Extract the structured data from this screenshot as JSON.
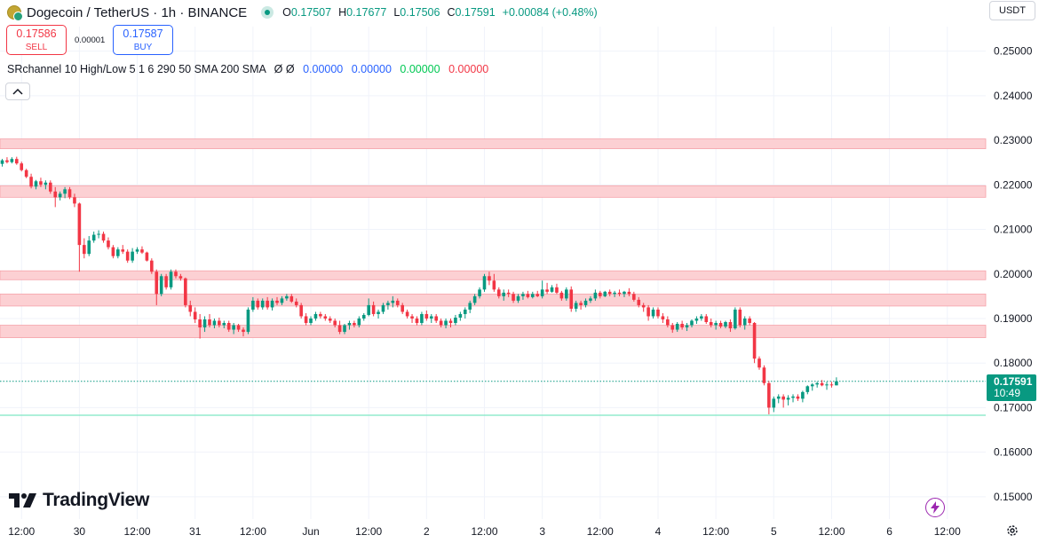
{
  "header": {
    "symbol": "Dogecoin / TetherUS · 1h · BINANCE",
    "ohlc": [
      {
        "key": "O",
        "value": "0.17507"
      },
      {
        "key": "H",
        "value": "0.17677"
      },
      {
        "key": "L",
        "value": "0.17506"
      },
      {
        "key": "C",
        "value": "0.17591"
      }
    ],
    "change": "+0.00084 (+0.48%)"
  },
  "trade": {
    "sell_price": "0.17586",
    "sell_label": "SELL",
    "spread": "0.00001",
    "buy_price": "0.17587",
    "buy_label": "BUY"
  },
  "indicator": {
    "name": "SRchannel 10 High/Low 5 1 6 290 50 SMA 200 SMA",
    "flags": "Ø  Ø",
    "values": [
      "0.00000",
      "0.00000",
      "0.00000",
      "0.00000"
    ]
  },
  "currency": "USDT",
  "brand": "TradingView",
  "last_price": {
    "price": "0.17591",
    "countdown": "10:49"
  },
  "colors": {
    "up": "#089981",
    "down": "#f23645",
    "zone_fill": "#fcd0d3",
    "zone_border": "#f5a3aa"
  },
  "icons": [
    "coin-icon",
    "chevron-up-icon",
    "bolt-icon",
    "gear-icon",
    "tradingview-logo-icon"
  ],
  "chart_data": {
    "type": "candlestick",
    "y_ticks": [
      "0.25000",
      "0.24000",
      "0.23000",
      "0.22000",
      "0.21000",
      "0.20000",
      "0.19000",
      "0.18000",
      "0.17000",
      "0.16000",
      "0.15000"
    ],
    "ylim": [
      0.145,
      0.2555
    ],
    "x_ticks": [
      "12:00",
      "30",
      "12:00",
      "31",
      "12:00",
      "Jun",
      "12:00",
      "2",
      "12:00",
      "3",
      "12:00",
      "4",
      "12:00",
      "5",
      "12:00",
      "6",
      "12:00"
    ],
    "grid": true,
    "last_close": 0.17591,
    "horizontal_line": 0.1683,
    "sr_zones": [
      [
        0.2281,
        0.2303
      ],
      [
        0.2172,
        0.2198
      ],
      [
        0.1987,
        0.2007
      ],
      [
        0.1928,
        0.1955
      ],
      [
        0.1857,
        0.1885
      ]
    ],
    "candles": [
      [
        0.2247,
        0.2258,
        0.2241,
        0.2255
      ],
      [
        0.2255,
        0.2262,
        0.2248,
        0.2251
      ],
      [
        0.2251,
        0.2262,
        0.2248,
        0.2258
      ],
      [
        0.2258,
        0.2263,
        0.2245,
        0.2248
      ],
      [
        0.2248,
        0.2252,
        0.223,
        0.2233
      ],
      [
        0.2233,
        0.2236,
        0.2215,
        0.2218
      ],
      [
        0.2218,
        0.2225,
        0.2192,
        0.2196
      ],
      [
        0.2196,
        0.2211,
        0.219,
        0.2208
      ],
      [
        0.2208,
        0.2216,
        0.2195,
        0.22
      ],
      [
        0.22,
        0.221,
        0.219,
        0.2205
      ],
      [
        0.2205,
        0.221,
        0.218,
        0.2185
      ],
      [
        0.2185,
        0.2195,
        0.215,
        0.2172
      ],
      [
        0.2172,
        0.2185,
        0.2165,
        0.218
      ],
      [
        0.218,
        0.2195,
        0.217,
        0.219
      ],
      [
        0.219,
        0.2195,
        0.2168,
        0.2172
      ],
      [
        0.2172,
        0.218,
        0.215,
        0.2158
      ],
      [
        0.2158,
        0.216,
        0.2005,
        0.2065
      ],
      [
        0.2065,
        0.208,
        0.2035,
        0.2045
      ],
      [
        0.2045,
        0.2085,
        0.204,
        0.2075
      ],
      [
        0.2075,
        0.2095,
        0.207,
        0.2088
      ],
      [
        0.2088,
        0.2098,
        0.208,
        0.209
      ],
      [
        0.209,
        0.2095,
        0.207,
        0.2075
      ],
      [
        0.2075,
        0.2082,
        0.2055,
        0.206
      ],
      [
        0.206,
        0.2065,
        0.2035,
        0.204
      ],
      [
        0.204,
        0.206,
        0.2035,
        0.2055
      ],
      [
        0.2055,
        0.2065,
        0.2045,
        0.205
      ],
      [
        0.205,
        0.2055,
        0.2025,
        0.203
      ],
      [
        0.203,
        0.2058,
        0.2025,
        0.205
      ],
      [
        0.205,
        0.206,
        0.2045,
        0.2055
      ],
      [
        0.2055,
        0.2062,
        0.2045,
        0.2048
      ],
      [
        0.2048,
        0.205,
        0.2028,
        0.203
      ],
      [
        0.203,
        0.2035,
        0.2,
        0.2005
      ],
      [
        0.2005,
        0.201,
        0.193,
        0.1955
      ],
      [
        0.1955,
        0.2,
        0.195,
        0.1995
      ],
      [
        0.1995,
        0.2,
        0.1965,
        0.197
      ],
      [
        0.197,
        0.201,
        0.1965,
        0.2005
      ],
      [
        0.2005,
        0.201,
        0.199,
        0.1995
      ],
      [
        0.1995,
        0.2,
        0.1985,
        0.199
      ],
      [
        0.199,
        0.1992,
        0.1925,
        0.193
      ],
      [
        0.193,
        0.194,
        0.1905,
        0.1915
      ],
      [
        0.1915,
        0.1925,
        0.189,
        0.1898
      ],
      [
        0.1898,
        0.191,
        0.1855,
        0.188
      ],
      [
        0.188,
        0.1905,
        0.187,
        0.1898
      ],
      [
        0.1898,
        0.191,
        0.188,
        0.1885
      ],
      [
        0.1885,
        0.19,
        0.1878,
        0.1895
      ],
      [
        0.1895,
        0.1902,
        0.188,
        0.1885
      ],
      [
        0.1885,
        0.1895,
        0.1878,
        0.189
      ],
      [
        0.189,
        0.1895,
        0.187,
        0.1875
      ],
      [
        0.1875,
        0.189,
        0.1865,
        0.1885
      ],
      [
        0.1885,
        0.1888,
        0.187,
        0.1875
      ],
      [
        0.1875,
        0.188,
        0.186,
        0.187
      ],
      [
        0.187,
        0.1925,
        0.1865,
        0.192
      ],
      [
        0.192,
        0.1948,
        0.1915,
        0.194
      ],
      [
        0.194,
        0.1945,
        0.192,
        0.1925
      ],
      [
        0.1925,
        0.1945,
        0.192,
        0.194
      ],
      [
        0.194,
        0.1948,
        0.192,
        0.1925
      ],
      [
        0.1925,
        0.1945,
        0.1918,
        0.194
      ],
      [
        0.194,
        0.1948,
        0.193,
        0.1935
      ],
      [
        0.1935,
        0.195,
        0.193,
        0.1945
      ],
      [
        0.1945,
        0.1955,
        0.194,
        0.195
      ],
      [
        0.195,
        0.1955,
        0.1935,
        0.1938
      ],
      [
        0.1938,
        0.1945,
        0.1925,
        0.193
      ],
      [
        0.193,
        0.1935,
        0.19,
        0.1905
      ],
      [
        0.1905,
        0.1912,
        0.1885,
        0.189
      ],
      [
        0.189,
        0.1905,
        0.1885,
        0.19
      ],
      [
        0.19,
        0.1915,
        0.1895,
        0.191
      ],
      [
        0.191,
        0.1915,
        0.19,
        0.1905
      ],
      [
        0.1905,
        0.191,
        0.1895,
        0.19
      ],
      [
        0.19,
        0.1905,
        0.189,
        0.1895
      ],
      [
        0.1895,
        0.19,
        0.188,
        0.1885
      ],
      [
        0.1885,
        0.1895,
        0.1865,
        0.187
      ],
      [
        0.187,
        0.1888,
        0.1865,
        0.1885
      ],
      [
        0.1885,
        0.1895,
        0.1875,
        0.189
      ],
      [
        0.189,
        0.1895,
        0.188,
        0.1885
      ],
      [
        0.1885,
        0.1905,
        0.188,
        0.19
      ],
      [
        0.19,
        0.1912,
        0.1895,
        0.1908
      ],
      [
        0.1908,
        0.1945,
        0.1905,
        0.193
      ],
      [
        0.193,
        0.1938,
        0.1905,
        0.191
      ],
      [
        0.191,
        0.192,
        0.19,
        0.1915
      ],
      [
        0.1915,
        0.1935,
        0.191,
        0.193
      ],
      [
        0.193,
        0.194,
        0.192,
        0.1935
      ],
      [
        0.1935,
        0.195,
        0.1925,
        0.194
      ],
      [
        0.194,
        0.1945,
        0.1925,
        0.193
      ],
      [
        0.193,
        0.1935,
        0.191,
        0.1915
      ],
      [
        0.1915,
        0.192,
        0.19,
        0.1905
      ],
      [
        0.1905,
        0.191,
        0.189,
        0.19
      ],
      [
        0.19,
        0.1905,
        0.1885,
        0.189
      ],
      [
        0.189,
        0.1915,
        0.1885,
        0.191
      ],
      [
        0.191,
        0.1918,
        0.1895,
        0.19
      ],
      [
        0.19,
        0.191,
        0.189,
        0.1905
      ],
      [
        0.1905,
        0.191,
        0.189,
        0.1895
      ],
      [
        0.1895,
        0.19,
        0.188,
        0.1885
      ],
      [
        0.1885,
        0.19,
        0.1878,
        0.1895
      ],
      [
        0.1895,
        0.19,
        0.188,
        0.189
      ],
      [
        0.189,
        0.1908,
        0.1885,
        0.1902
      ],
      [
        0.1902,
        0.1915,
        0.1895,
        0.191
      ],
      [
        0.191,
        0.1925,
        0.19,
        0.192
      ],
      [
        0.192,
        0.194,
        0.1912,
        0.1935
      ],
      [
        0.1935,
        0.1955,
        0.193,
        0.195
      ],
      [
        0.195,
        0.197,
        0.1945,
        0.1965
      ],
      [
        0.1965,
        0.2,
        0.196,
        0.1995
      ],
      [
        0.1995,
        0.2005,
        0.1975,
        0.1985
      ],
      [
        0.1985,
        0.2,
        0.196,
        0.1965
      ],
      [
        0.1965,
        0.197,
        0.1945,
        0.195
      ],
      [
        0.195,
        0.1965,
        0.194,
        0.1958
      ],
      [
        0.1958,
        0.1965,
        0.1948,
        0.1955
      ],
      [
        0.1955,
        0.196,
        0.1935,
        0.194
      ],
      [
        0.194,
        0.1955,
        0.1935,
        0.195
      ],
      [
        0.195,
        0.196,
        0.1942,
        0.1955
      ],
      [
        0.1955,
        0.1962,
        0.1945,
        0.1948
      ],
      [
        0.1948,
        0.196,
        0.1945,
        0.1955
      ],
      [
        0.1955,
        0.1962,
        0.1948,
        0.195
      ],
      [
        0.195,
        0.1985,
        0.1945,
        0.1965
      ],
      [
        0.1965,
        0.198,
        0.1955,
        0.196
      ],
      [
        0.196,
        0.1975,
        0.1958,
        0.197
      ],
      [
        0.197,
        0.1978,
        0.1955,
        0.1958
      ],
      [
        0.1958,
        0.1962,
        0.194,
        0.1945
      ],
      [
        0.1945,
        0.197,
        0.194,
        0.1965
      ],
      [
        0.1965,
        0.1972,
        0.1915,
        0.1922
      ],
      [
        0.1922,
        0.194,
        0.1915,
        0.1935
      ],
      [
        0.1935,
        0.194,
        0.192,
        0.193
      ],
      [
        0.193,
        0.1945,
        0.1925,
        0.194
      ],
      [
        0.194,
        0.195,
        0.1935,
        0.1945
      ],
      [
        0.1945,
        0.1965,
        0.194,
        0.1958
      ],
      [
        0.1958,
        0.1962,
        0.1945,
        0.195
      ],
      [
        0.195,
        0.1962,
        0.1948,
        0.196
      ],
      [
        0.196,
        0.1965,
        0.195,
        0.1955
      ],
      [
        0.1955,
        0.1962,
        0.1948,
        0.1958
      ],
      [
        0.1958,
        0.1965,
        0.195,
        0.1955
      ],
      [
        0.1955,
        0.1962,
        0.1948,
        0.196
      ],
      [
        0.196,
        0.1968,
        0.195,
        0.1955
      ],
      [
        0.1955,
        0.196,
        0.1938,
        0.1942
      ],
      [
        0.1942,
        0.1948,
        0.1925,
        0.193
      ],
      [
        0.193,
        0.1935,
        0.1915,
        0.1925
      ],
      [
        0.1925,
        0.193,
        0.1895,
        0.1905
      ],
      [
        0.1905,
        0.1925,
        0.19,
        0.192
      ],
      [
        0.192,
        0.1925,
        0.19,
        0.1905
      ],
      [
        0.1905,
        0.1912,
        0.189,
        0.1898
      ],
      [
        0.1898,
        0.1905,
        0.188,
        0.1885
      ],
      [
        0.1885,
        0.189,
        0.1868,
        0.1875
      ],
      [
        0.1875,
        0.1892,
        0.187,
        0.1888
      ],
      [
        0.1888,
        0.1895,
        0.1875,
        0.188
      ],
      [
        0.188,
        0.189,
        0.1872,
        0.1885
      ],
      [
        0.1885,
        0.1898,
        0.188,
        0.1895
      ],
      [
        0.1895,
        0.1905,
        0.1888,
        0.19
      ],
      [
        0.19,
        0.191,
        0.1895,
        0.1905
      ],
      [
        0.1905,
        0.191,
        0.1888,
        0.1892
      ],
      [
        0.1892,
        0.19,
        0.188,
        0.1885
      ],
      [
        0.1885,
        0.1895,
        0.1875,
        0.189
      ],
      [
        0.189,
        0.1895,
        0.1878,
        0.1882
      ],
      [
        0.1882,
        0.1895,
        0.1878,
        0.1892
      ],
      [
        0.1892,
        0.1898,
        0.187,
        0.1878
      ],
      [
        0.1878,
        0.1925,
        0.1875,
        0.192
      ],
      [
        0.192,
        0.1925,
        0.188,
        0.1885
      ],
      [
        0.1885,
        0.1905,
        0.1875,
        0.19
      ],
      [
        0.19,
        0.1905,
        0.1885,
        0.189
      ],
      [
        0.189,
        0.1892,
        0.18,
        0.181
      ],
      [
        0.181,
        0.1815,
        0.1785,
        0.179
      ],
      [
        0.179,
        0.1795,
        0.175,
        0.1755
      ],
      [
        0.1755,
        0.176,
        0.1685,
        0.17
      ],
      [
        0.17,
        0.1725,
        0.169,
        0.172
      ],
      [
        0.172,
        0.173,
        0.171,
        0.1725
      ],
      [
        0.1725,
        0.173,
        0.17,
        0.1718
      ],
      [
        0.1718,
        0.1728,
        0.1705,
        0.1722
      ],
      [
        0.1722,
        0.173,
        0.1712,
        0.1725
      ],
      [
        0.1725,
        0.173,
        0.1715,
        0.172
      ],
      [
        0.172,
        0.1738,
        0.1712,
        0.1735
      ],
      [
        0.1735,
        0.175,
        0.173,
        0.1748
      ],
      [
        0.1748,
        0.1755,
        0.1738,
        0.1752
      ],
      [
        0.1752,
        0.1758,
        0.1745,
        0.1755
      ],
      [
        0.1755,
        0.1762,
        0.1748,
        0.175
      ],
      [
        0.175,
        0.1758,
        0.174,
        0.1752
      ],
      [
        0.1752,
        0.1758,
        0.1745,
        0.175
      ],
      [
        0.175,
        0.1768,
        0.175,
        0.1759
      ]
    ]
  }
}
